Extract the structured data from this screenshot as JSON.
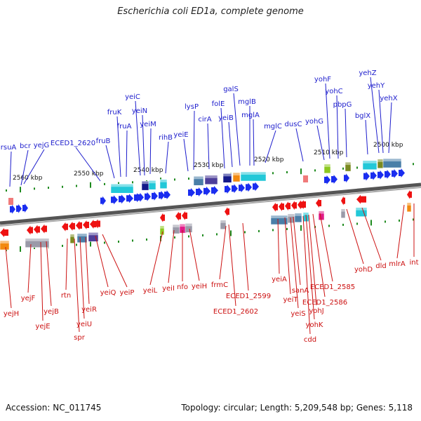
{
  "title": "Escherichia coli ED1a, complete genome",
  "footer": {
    "accession": "Accession: NC_011745",
    "topology": "Topology: circular; Length: 5,209,548 bp; Genes: 5,118"
  },
  "colors": {
    "top_gene_label": "#1c1ccc",
    "bottom_gene_label": "#cc1010",
    "forward_arrow": "#1a2df0",
    "reverse_arrow": "#ee1111",
    "backbone": "#777777",
    "tick": "#1e8a1e"
  },
  "scale_labels": [
    "2560 kbp",
    "2550 kbp",
    "2540 kbp",
    "2530 kbp",
    "2520 kbp",
    "2510 kbp",
    "2500 kbp"
  ],
  "top_genes": [
    "rsuA",
    "bcr",
    "yejG",
    "ECED1_2620",
    "fruB",
    "fruK",
    "fruA",
    "yeiC",
    "yeiN",
    "yeiM",
    "rihB",
    "yeiE",
    "lysP",
    "cirA",
    "folE",
    "yeiB",
    "galS",
    "mglB",
    "mglA",
    "mglC",
    "dusC",
    "yohG",
    "yohF",
    "yohC",
    "pbpG",
    "bglX",
    "yehZ",
    "yehY",
    "yehX"
  ],
  "bottom_genes": [
    "yejH",
    "yejF",
    "yejE",
    "yejB",
    "rtn",
    "spr",
    "yeiU",
    "yeiR",
    "yeiQ",
    "yeiP",
    "yeiL",
    "yeiI",
    "nfo",
    "yeiH",
    "frmC",
    "ECED1_2602",
    "ECED1_2599",
    "yeiA",
    "yeiT",
    "yeiS",
    "sanA",
    "cdd",
    "yohK",
    "yohJ",
    "ECED1_2586",
    "ECED1_2585",
    "yohD",
    "dld",
    "mlrA",
    "int"
  ]
}
